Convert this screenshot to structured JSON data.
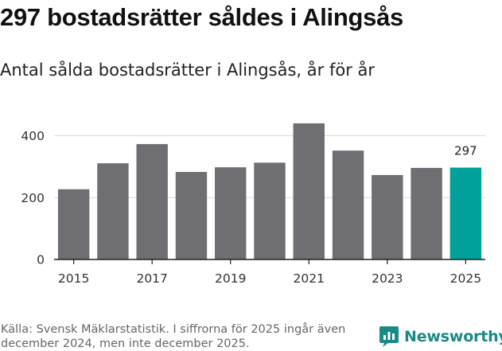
{
  "header": {
    "title": "297 bostadsrätter såldes i Alingsås",
    "subtitle": "Antal sålda bostadsrätter i Alingsås, år för år"
  },
  "chart_data": {
    "type": "bar",
    "title": "297 bostadsrätter såldes i Alingsås",
    "subtitle": "Antal sålda bostadsrätter i Alingsås, år för år",
    "categories": [
      "2015",
      "2016",
      "2017",
      "2018",
      "2019",
      "2020",
      "2021",
      "2022",
      "2023",
      "2024",
      "2025"
    ],
    "x_tick_labels": [
      "2015",
      "2017",
      "2019",
      "2021",
      "2023",
      "2025"
    ],
    "values": [
      227,
      311,
      373,
      283,
      298,
      313,
      440,
      352,
      273,
      296,
      297
    ],
    "highlight_index": 10,
    "data_labels": [
      {
        "index": 10,
        "text": "297"
      }
    ],
    "ylim": [
      0,
      440
    ],
    "yticks": [
      0,
      200,
      400
    ],
    "xlabel": "",
    "ylabel": "",
    "grid": true,
    "colors": {
      "bar": "#6f6e73",
      "highlight": "#00a19a",
      "grid": "#d9d9d9",
      "axis": "#222222"
    }
  },
  "footer": {
    "source": "Källa: Svensk Mäklarstatistik. I siffrorna för 2025 ingår även december 2024, men inte december 2025.",
    "brand": "Newsworthy",
    "brand_icon": "newsworthy-logo-icon",
    "brand_color": "#1b8a86"
  }
}
